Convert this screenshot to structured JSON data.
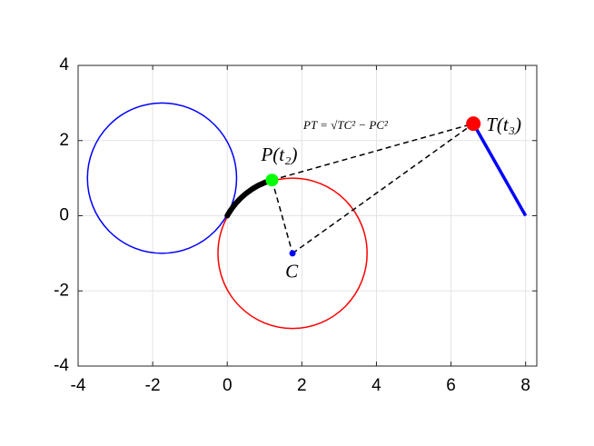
{
  "chart_data": {
    "type": "geometry",
    "xlim": [
      -4,
      8.3
    ],
    "ylim": [
      -4,
      4
    ],
    "xticks": [
      -4,
      -2,
      0,
      2,
      4,
      6,
      8
    ],
    "yticks": [
      -4,
      -2,
      0,
      2,
      4
    ],
    "grid": true,
    "circles": [
      {
        "center_x": -1.75,
        "center_y": 1,
        "radius": 2,
        "color": "#0000ff"
      },
      {
        "center_x": 1.75,
        "center_y": -1,
        "radius": 2,
        "color": "#ff0000"
      }
    ],
    "arc": {
      "x": [
        0,
        1.2
      ],
      "y": [
        0,
        0.95
      ],
      "color": "#000000"
    },
    "lines": [
      {
        "x": [
          6.6,
          8
        ],
        "y": [
          2.45,
          0
        ],
        "color": "#0000ff",
        "style": "solid"
      },
      {
        "x": [
          1.2,
          6.6
        ],
        "y": [
          0.95,
          2.45
        ],
        "color": "#000000",
        "style": "dashed"
      },
      {
        "x": [
          1.2,
          1.75
        ],
        "y": [
          0.95,
          -1
        ],
        "color": "#000000",
        "style": "dashed"
      },
      {
        "x": [
          1.75,
          6.6
        ],
        "y": [
          -1,
          2.45
        ],
        "color": "#000000",
        "style": "dashed"
      }
    ],
    "points": [
      {
        "label": "P(t₂)",
        "x": 1.2,
        "y": 0.95,
        "color": "#00ff00"
      },
      {
        "label": "T(t₃)",
        "x": 6.6,
        "y": 2.45,
        "color": "#ff0000"
      },
      {
        "label": "C",
        "x": 1.75,
        "y": -1,
        "color": "#0000ff"
      }
    ],
    "annotation": "PT = √TC² − PC²"
  }
}
